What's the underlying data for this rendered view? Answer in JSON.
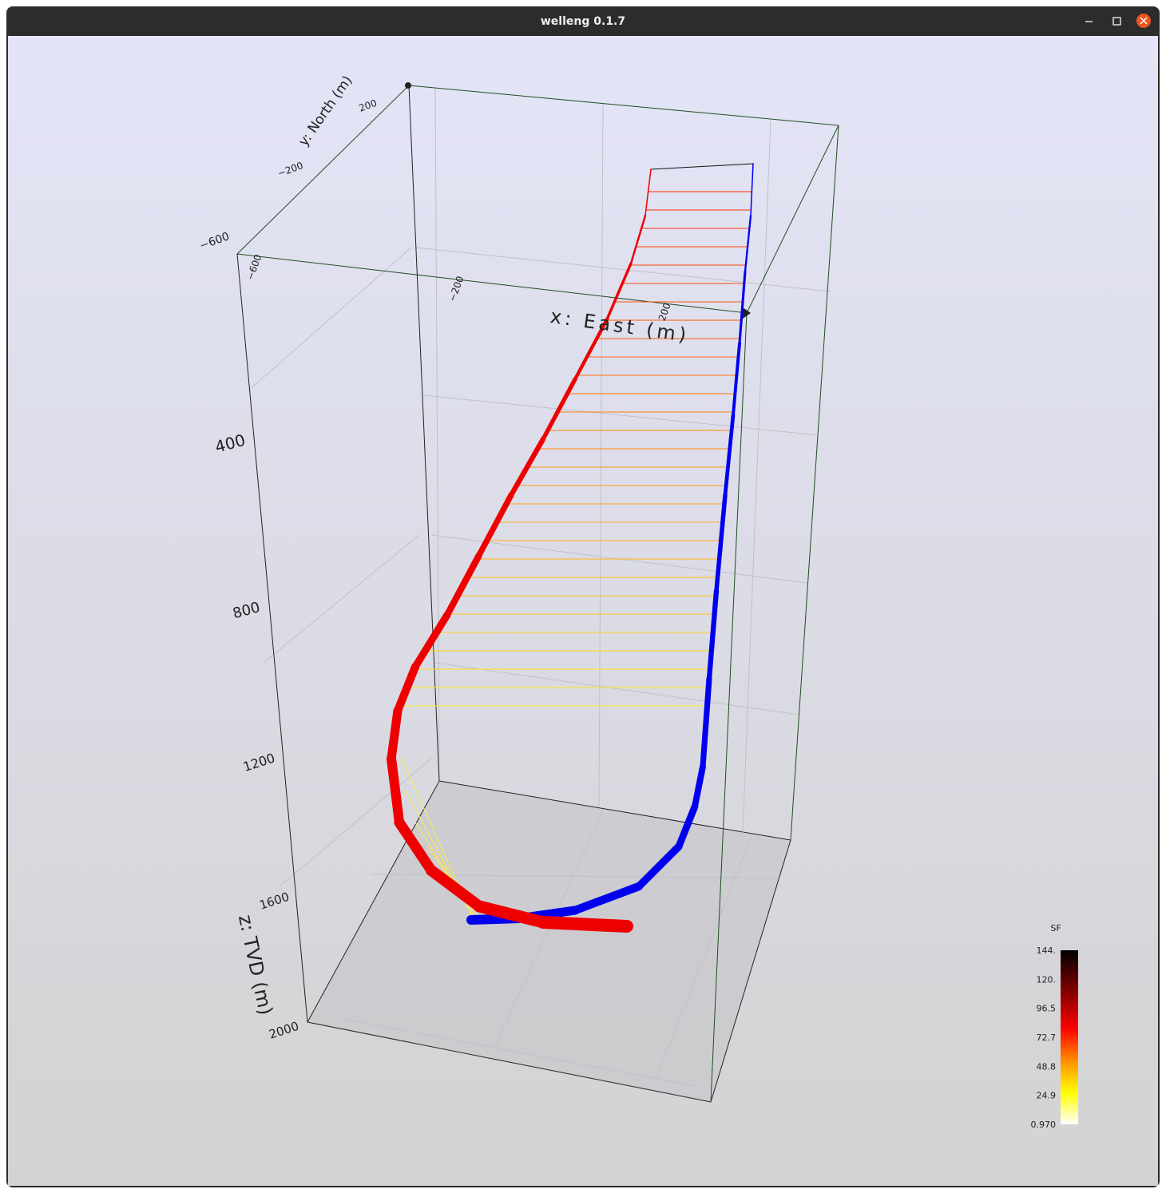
{
  "window": {
    "title": "welleng 0.1.7"
  },
  "axes": {
    "x_label": "x: East (m)",
    "y_label": "y: North (m)",
    "z_label": "z: TVD (m)",
    "x_ticks": [
      "−600",
      "−200",
      "200"
    ],
    "y_ticks": [
      "−600",
      "−200",
      "200"
    ],
    "z_ticks": [
      "400",
      "800",
      "1200",
      "1600",
      "2000"
    ]
  },
  "colorbar": {
    "title": "SF",
    "labels": [
      "144.",
      "120.",
      "96.5",
      "72.7",
      "48.8",
      "24.9",
      "0.970"
    ]
  }
}
